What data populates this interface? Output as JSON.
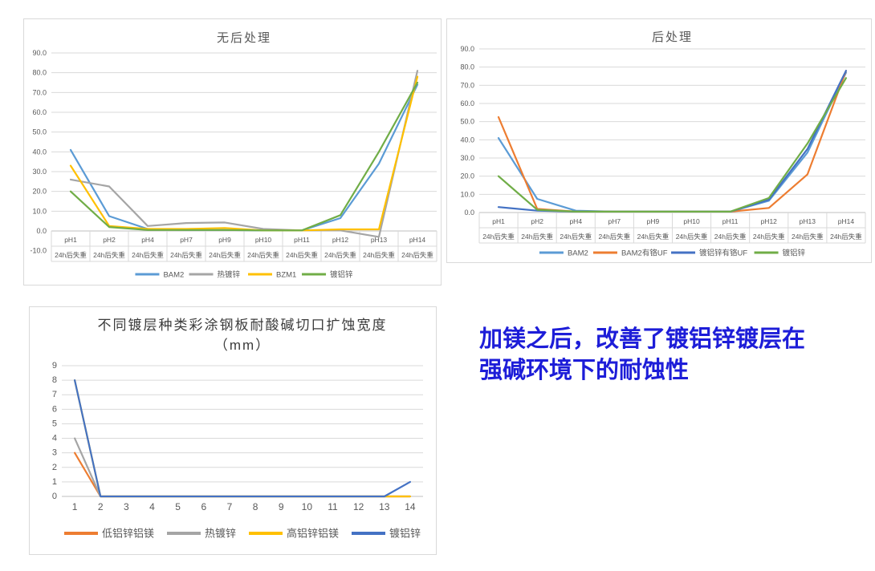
{
  "note": {
    "line1": "加镁之后，改善了镀铝锌镀层在",
    "line2": "强碱环境下的耐蚀性",
    "color": "#1d1dd8"
  },
  "palette": {
    "excel_blue_light": "#5B9BD5",
    "excel_orange": "#ED7D31",
    "excel_gray": "#A5A5A5",
    "excel_yellow": "#FFC000",
    "excel_green": "#70AD47",
    "excel_blue_dark": "#4472C4",
    "grid": "#d9d9d9",
    "axis_text": "#595959"
  },
  "chart_data": [
    {
      "id": "no-post-treatment",
      "type": "line",
      "title": "无后处理",
      "categories": [
        "pH1",
        "pH2",
        "pH4",
        "pH7",
        "pH9",
        "pH10",
        "pH11",
        "pH12",
        "pH13",
        "pH14"
      ],
      "category_sublabel": "24h后失重",
      "xlabel": "",
      "ylabel": "",
      "ylim": [
        -10,
        90
      ],
      "ytick_step": 10,
      "grid": true,
      "legend_position": "bottom",
      "series": [
        {
          "name": "BAM2",
          "color": "#5B9BD5",
          "values": [
            41,
            7.5,
            1,
            0.5,
            0.5,
            0.3,
            0.3,
            6.5,
            34,
            74
          ]
        },
        {
          "name": "热镀锌",
          "color": "#A5A5A5",
          "values": [
            26,
            22.5,
            2.5,
            4,
            4.3,
            1,
            0.3,
            0.3,
            -3,
            81
          ]
        },
        {
          "name": "BZM1",
          "color": "#FFC000",
          "values": [
            33,
            2.5,
            1,
            1,
            1.5,
            0.3,
            0.3,
            0.8,
            0.8,
            78
          ]
        },
        {
          "name": "镀铝锌",
          "color": "#70AD47",
          "values": [
            20,
            2,
            0.5,
            0.5,
            0.5,
            0.3,
            0.3,
            8,
            40,
            75
          ]
        }
      ]
    },
    {
      "id": "post-treatment",
      "type": "line",
      "title": "后处理",
      "categories": [
        "pH1",
        "pH2",
        "pH4",
        "pH7",
        "pH9",
        "pH10",
        "pH11",
        "pH12",
        "pH13",
        "pH14"
      ],
      "category_sublabel": "24h后失重",
      "xlabel": "",
      "ylabel": "",
      "ylim": [
        0,
        90
      ],
      "ytick_step": 10,
      "grid": true,
      "legend_position": "bottom",
      "series": [
        {
          "name": "BAM2",
          "color": "#5B9BD5",
          "values": [
            41,
            7.5,
            1,
            0.5,
            0.5,
            0.5,
            0.5,
            6.5,
            33,
            77
          ]
        },
        {
          "name": "BAM2有铬UF",
          "color": "#ED7D31",
          "values": [
            52.5,
            2,
            0.5,
            0.5,
            0.5,
            0.5,
            0.5,
            2.5,
            21,
            78
          ]
        },
        {
          "name": "镀铝锌有铬UF",
          "color": "#4472C4",
          "values": [
            3,
            1,
            0.5,
            0.5,
            0.5,
            0.5,
            0.5,
            7,
            35,
            78
          ]
        },
        {
          "name": "镀铝锌",
          "color": "#70AD47",
          "values": [
            20,
            1.5,
            0.5,
            0.5,
            0.5,
            0.5,
            0.5,
            8,
            38,
            74
          ]
        }
      ]
    },
    {
      "id": "cut-edge-corrosion-width",
      "type": "line",
      "title": "不同镀层种类彩涂钢板耐酸碱切口扩蚀宽度",
      "title_line2": "（mm）",
      "categories": [
        "1",
        "2",
        "3",
        "4",
        "5",
        "6",
        "7",
        "8",
        "9",
        "10",
        "11",
        "12",
        "13",
        "14"
      ],
      "xlabel": "",
      "ylabel": "",
      "ylim": [
        0,
        9
      ],
      "ytick_step": 1,
      "grid": true,
      "legend_position": "bottom",
      "series": [
        {
          "name": "低铝锌铝镁",
          "color": "#ED7D31",
          "values": [
            3,
            0,
            0,
            0,
            0,
            0,
            0,
            0,
            0,
            0,
            0,
            0,
            0,
            0
          ]
        },
        {
          "name": "热镀锌",
          "color": "#A5A5A5",
          "values": [
            4,
            0,
            0,
            0,
            0,
            0,
            0,
            0,
            0,
            0,
            0,
            0,
            0,
            0
          ]
        },
        {
          "name": "高铝锌铝镁",
          "color": "#FFC000",
          "values": [
            8,
            0,
            0,
            0,
            0,
            0,
            0,
            0,
            0,
            0,
            0,
            0,
            0,
            0
          ]
        },
        {
          "name": "镀铝锌",
          "color": "#4472C4",
          "values": [
            8,
            0,
            0,
            0,
            0,
            0,
            0,
            0,
            0,
            0,
            0,
            0,
            0,
            1
          ]
        }
      ]
    }
  ]
}
